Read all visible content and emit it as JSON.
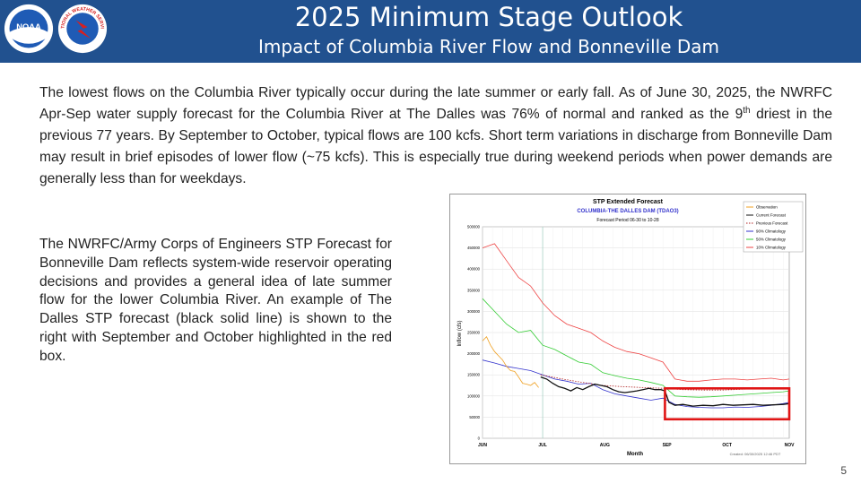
{
  "header": {
    "title": "2025 Minimum Stage Outlook",
    "subtitle": "Impact of Columbia River Flow and Bonneville Dam",
    "noaa_logo_text": "NOAA",
    "nws_logo_text": "NATIONAL WEATHER SERVICE",
    "background_color": "#21518f"
  },
  "intro": {
    "part1": "The lowest flows on the Columbia River typically occur during the late summer or early fall.  As of June 30, 2025, the NWRFC Apr-Sep water supply forecast for the Columbia River at The Dalles was 76% of normal and ranked as the 9",
    "superscript": "th",
    "part2": " driest in the previous 77 years.  By September to October, typical flows are 100 kcfs. Short term variations in discharge from Bonneville Dam may result in brief episodes of lower flow (~75 kcfs).  This is especially true during weekend periods when power demands are generally less than for weekdays."
  },
  "left_text": "The NWRFC/Army Corps of Engineers STP Forecast for Bonneville Dam reflects system-wide reservoir operating decisions and provides a general idea of late summer flow for the lower Columbia River.  An example of The Dalles STP forecast (black solid line) is shown to the right with September and October highlighted in the red box.",
  "page_number": "5",
  "chart_data": {
    "type": "line",
    "title": "STP Extended Forecast",
    "subtitle": "COLUMBIA-THE DALLES DAM (TDAO3)",
    "period": "Forecast Period  06-30 to  10-28",
    "ylabel": "Inflow (cfs)",
    "xlabel": "Month",
    "ylim": [
      0,
      500000
    ],
    "yticks": [
      "0",
      "50000",
      "100000",
      "150000",
      "200000",
      "250000",
      "300000",
      "350000",
      "400000",
      "450000",
      "500000"
    ],
    "xticks": [
      "JUN",
      "JUL",
      "AUG",
      "SEP",
      "OCT",
      "NOV"
    ],
    "x_tick_days": [
      0,
      30,
      61,
      92,
      122,
      153
    ],
    "x_max_day": 153,
    "created": "Created:  06/30/2025 12:46 PDT",
    "grid": true,
    "legend_placement": "top-right",
    "highlight_color": "#e01515",
    "highlight_box": {
      "x_start_day": 91,
      "x_end_day": 153,
      "y_min": 45000,
      "y_max": 118000
    },
    "series": [
      {
        "name": "Observation",
        "color": "#f0a020",
        "style": "solid",
        "x": [
          0,
          2,
          4,
          6,
          8,
          10,
          12,
          14,
          16,
          18,
          20,
          22,
          24,
          26,
          28
        ],
        "y": [
          230000,
          240000,
          220000,
          205000,
          195000,
          185000,
          170000,
          160000,
          158000,
          145000,
          130000,
          128000,
          125000,
          132000,
          120000
        ]
      },
      {
        "name": "Current Forecast",
        "color": "#111111",
        "style": "solid",
        "x": [
          29,
          32,
          35,
          38,
          41,
          44,
          47,
          50,
          53,
          56,
          59,
          62,
          65,
          68,
          71,
          74,
          77,
          80,
          83,
          86,
          89,
          91,
          93,
          96,
          100,
          105,
          110,
          115,
          120,
          125,
          130,
          135,
          140,
          145,
          150,
          153
        ],
        "y": [
          145000,
          140000,
          130000,
          122000,
          118000,
          112000,
          120000,
          115000,
          122000,
          128000,
          125000,
          122000,
          115000,
          110000,
          108000,
          110000,
          112000,
          115000,
          118000,
          115000,
          115000,
          112000,
          85000,
          78000,
          80000,
          76000,
          78000,
          77000,
          80000,
          78000,
          79000,
          80000,
          78000,
          79000,
          80000,
          82000
        ]
      },
      {
        "name": "Previous Forecast",
        "color": "#b02020",
        "style": "dotted",
        "x": [
          29,
          40,
          50,
          60,
          70,
          80,
          91,
          100,
          110,
          120,
          130,
          140,
          153
        ],
        "y": [
          150000,
          140000,
          132000,
          125000,
          122000,
          120000,
          118000,
          115000,
          114000,
          114000,
          116000,
          117000,
          118000
        ]
      },
      {
        "name": "90% Climatology",
        "color": "#3333cc",
        "style": "solid",
        "x": [
          0,
          6,
          12,
          18,
          24,
          30,
          36,
          42,
          48,
          54,
          60,
          66,
          72,
          78,
          84,
          90,
          96,
          102,
          108,
          114,
          120,
          126,
          132,
          138,
          144,
          150,
          153
        ],
        "y": [
          185000,
          178000,
          170000,
          165000,
          160000,
          150000,
          140000,
          135000,
          128000,
          130000,
          115000,
          105000,
          100000,
          95000,
          90000,
          95000,
          80000,
          75000,
          73000,
          72000,
          72000,
          74000,
          73000,
          75000,
          78000,
          82000,
          85000
        ]
      },
      {
        "name": "50% Climatology",
        "color": "#33cc33",
        "style": "solid",
        "x": [
          0,
          6,
          12,
          18,
          24,
          30,
          36,
          42,
          48,
          54,
          60,
          66,
          72,
          78,
          84,
          90,
          96,
          102,
          108,
          114,
          120,
          126,
          132,
          138,
          144,
          150,
          153
        ],
        "y": [
          330000,
          300000,
          270000,
          250000,
          255000,
          220000,
          210000,
          195000,
          180000,
          175000,
          155000,
          148000,
          142000,
          138000,
          132000,
          125000,
          100000,
          98000,
          97000,
          98000,
          100000,
          102000,
          104000,
          106000,
          108000,
          110000,
          112000
        ]
      },
      {
        "name": "10% Climatology",
        "color": "#ee4444",
        "style": "solid",
        "x": [
          0,
          6,
          12,
          18,
          24,
          30,
          36,
          42,
          48,
          54,
          60,
          66,
          72,
          78,
          84,
          90,
          96,
          102,
          108,
          114,
          120,
          126,
          132,
          138,
          144,
          150,
          153
        ],
        "y": [
          450000,
          460000,
          420000,
          380000,
          360000,
          320000,
          290000,
          270000,
          260000,
          250000,
          230000,
          215000,
          205000,
          200000,
          190000,
          180000,
          140000,
          135000,
          135000,
          138000,
          140000,
          140000,
          138000,
          140000,
          142000,
          138000,
          140000
        ]
      }
    ]
  }
}
